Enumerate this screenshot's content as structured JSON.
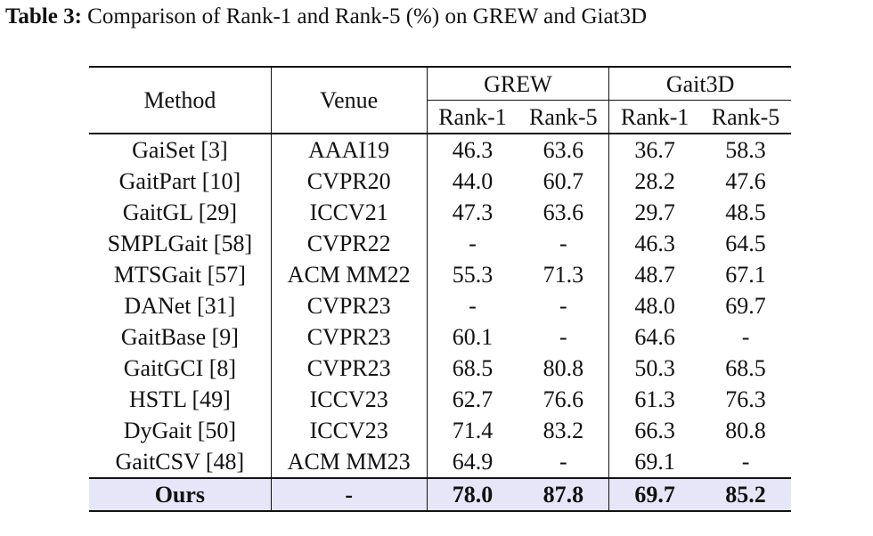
{
  "caption": {
    "label": "Table 3:",
    "text": "Comparison of Rank-1 and Rank-5 (%) on GREW and Giat3D"
  },
  "header": {
    "method": "Method",
    "venue": "Venue",
    "group1": "GREW",
    "group2": "Gait3D",
    "rank1": "Rank-1",
    "rank5": "Rank-5"
  },
  "rows": [
    {
      "method": "GaiSet [3]",
      "venue": "AAAI19",
      "grew_r1": "46.3",
      "grew_r5": "63.6",
      "g3d_r1": "36.7",
      "g3d_r5": "58.3"
    },
    {
      "method": "GaitPart [10]",
      "venue": "CVPR20",
      "grew_r1": "44.0",
      "grew_r5": "60.7",
      "g3d_r1": "28.2",
      "g3d_r5": "47.6"
    },
    {
      "method": "GaitGL [29]",
      "venue": "ICCV21",
      "grew_r1": "47.3",
      "grew_r5": "63.6",
      "g3d_r1": "29.7",
      "g3d_r5": "48.5"
    },
    {
      "method": "SMPLGait [58]",
      "venue": "CVPR22",
      "grew_r1": "-",
      "grew_r5": "-",
      "g3d_r1": "46.3",
      "g3d_r5": "64.5"
    },
    {
      "method": "MTSGait [57]",
      "venue": "ACM MM22",
      "grew_r1": "55.3",
      "grew_r5": "71.3",
      "g3d_r1": "48.7",
      "g3d_r5": "67.1"
    },
    {
      "method": "DANet [31]",
      "venue": "CVPR23",
      "grew_r1": "-",
      "grew_r5": "-",
      "g3d_r1": "48.0",
      "g3d_r5": "69.7"
    },
    {
      "method": "GaitBase [9]",
      "venue": "CVPR23",
      "grew_r1": "60.1",
      "grew_r5": "-",
      "g3d_r1": "64.6",
      "g3d_r5": "-"
    },
    {
      "method": "GaitGCI [8]",
      "venue": "CVPR23",
      "grew_r1": "68.5",
      "grew_r5": "80.8",
      "g3d_r1": "50.3",
      "g3d_r5": "68.5"
    },
    {
      "method": "HSTL [49]",
      "venue": "ICCV23",
      "grew_r1": "62.7",
      "grew_r5": "76.6",
      "g3d_r1": "61.3",
      "g3d_r5": "76.3"
    },
    {
      "method": "DyGait [50]",
      "venue": "ICCV23",
      "grew_r1": "71.4",
      "grew_r5": "83.2",
      "g3d_r1": "66.3",
      "g3d_r5": "80.8"
    },
    {
      "method": "GaitCSV [48]",
      "venue": "ACM MM23",
      "grew_r1": "64.9",
      "grew_r5": "-",
      "g3d_r1": "69.1",
      "g3d_r5": "-"
    }
  ],
  "ours": {
    "method": "Ours",
    "venue": "-",
    "grew_r1": "78.0",
    "grew_r5": "87.8",
    "g3d_r1": "69.7",
    "g3d_r5": "85.2"
  },
  "colors": {
    "highlight_row": "#e6e6f8"
  }
}
